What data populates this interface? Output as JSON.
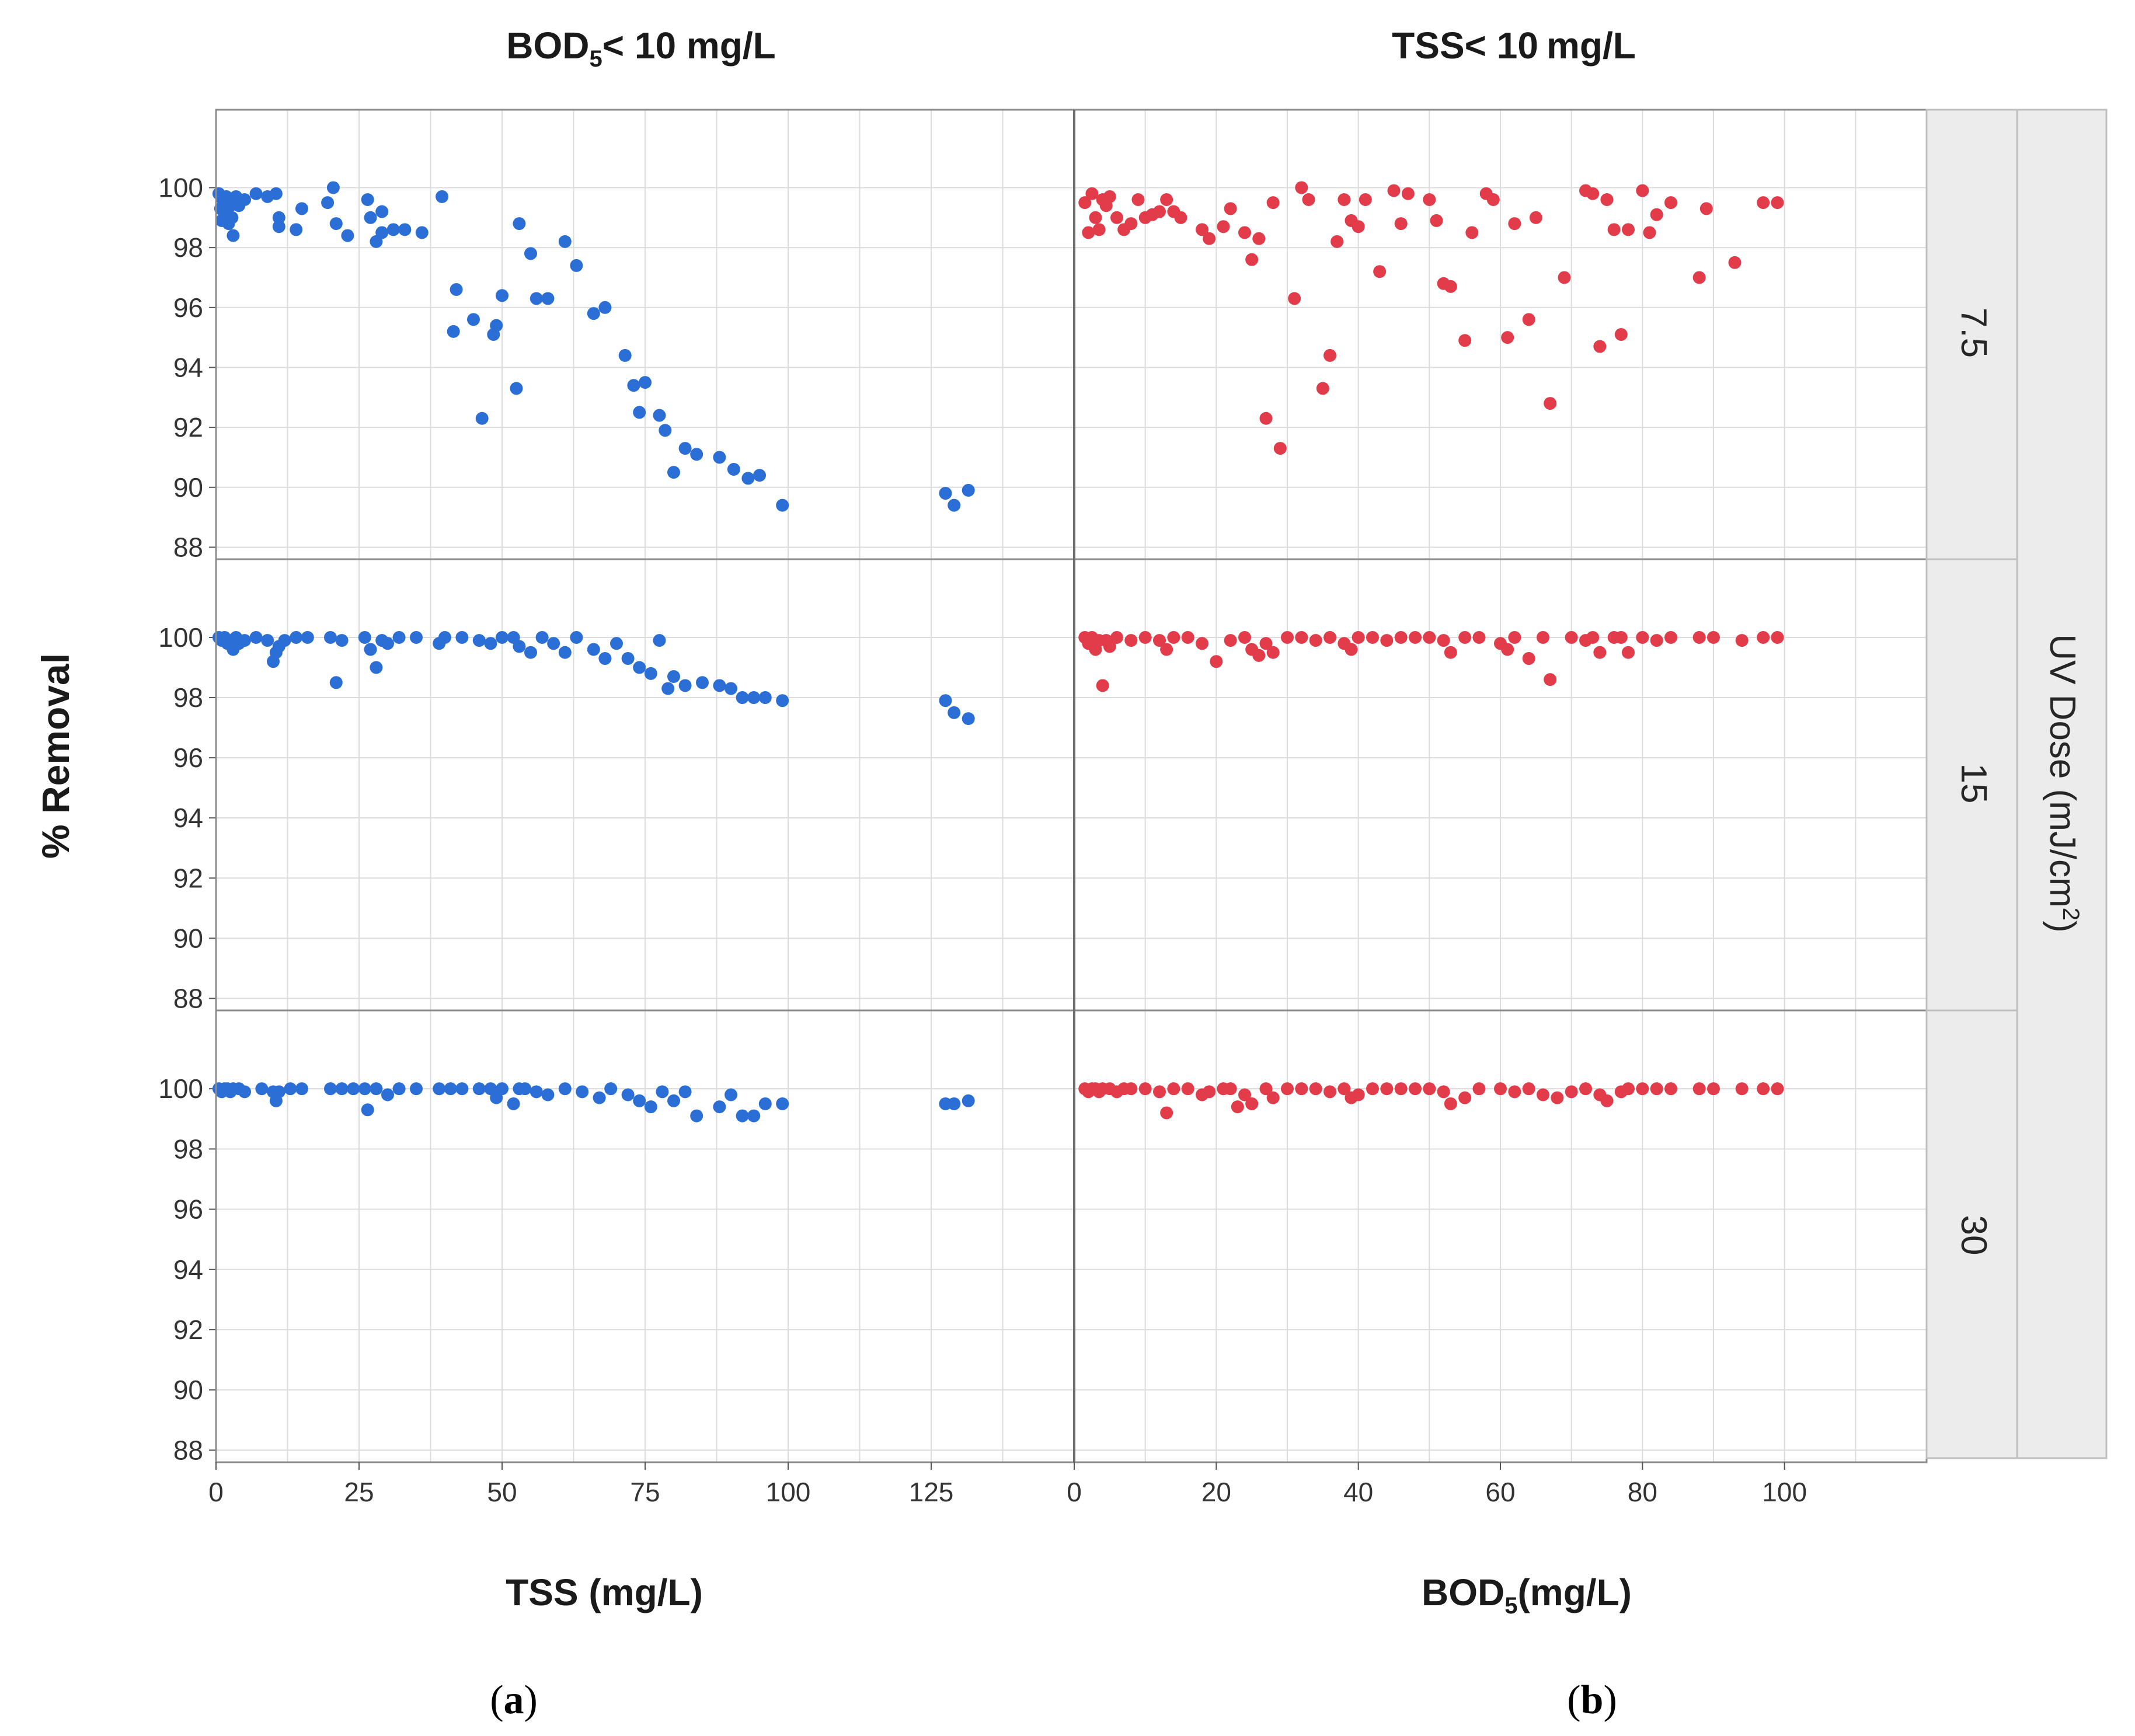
{
  "figure": {
    "panel_a": {
      "title_main": "BOD",
      "title_sub": "5",
      "title_rest": "< 10 mg/L",
      "xlabel": "TSS (mg/L)",
      "caption": "(a)"
    },
    "panel_b": {
      "title_main": "TSS< 10",
      "title_rest": "mg/L",
      "xlabel_main": "BOD",
      "xlabel_sub": "5",
      "xlabel_rest": "(mg/L)",
      "caption": "(b)"
    },
    "ylabel": "% Removal",
    "facet_label_main": "UV Dose (mJ/cm",
    "facet_label_sup": "2",
    "facet_label_rest": ")",
    "rows": [
      "7.5",
      "15",
      "30"
    ]
  },
  "chart_data": [
    {
      "type": "scatter",
      "panel": "a",
      "title": "BOD5< 10 mg/L",
      "xlabel": "TSS (mg/L)",
      "ylabel": "% Removal",
      "color": "#2b6fd6",
      "xlim": [
        0,
        150
      ],
      "ylim": [
        88,
        102
      ],
      "xticks": [
        0,
        25,
        50,
        75,
        100,
        125
      ],
      "yticks": [
        88,
        90,
        92,
        94,
        96,
        98,
        100
      ],
      "facets": [
        {
          "uv_dose": "7.5",
          "x": [
            0.5,
            0.8,
            1,
            1.2,
            1.5,
            1.8,
            2,
            2.2,
            2.5,
            2.8,
            3,
            3.2,
            3.5,
            4,
            5,
            7,
            9,
            10.5,
            11,
            11,
            14,
            15,
            19.5,
            20.5,
            21,
            23,
            26.5,
            27,
            29,
            28,
            29,
            31,
            33,
            36,
            39.5,
            41.5,
            42,
            45,
            46.5,
            48.5,
            49,
            50,
            52.5,
            53,
            55,
            56,
            58,
            61,
            63,
            66,
            68,
            71.5,
            73,
            74,
            75,
            77.5,
            78.5,
            80,
            82,
            84,
            88,
            90.5,
            93,
            95,
            99,
            127.5,
            129,
            131.5
          ],
          "y": [
            99.8,
            99.3,
            98.9,
            99.6,
            99.1,
            99.7,
            99.5,
            98.8,
            99.4,
            99.0,
            98.4,
            99.6,
            99.7,
            99.4,
            99.6,
            99.8,
            99.7,
            99.8,
            99.0,
            98.7,
            98.6,
            99.3,
            99.5,
            100,
            98.8,
            98.4,
            99.6,
            99.0,
            99.2,
            98.2,
            98.5,
            98.6,
            98.6,
            98.5,
            99.7,
            95.2,
            96.6,
            95.6,
            92.3,
            95.1,
            95.4,
            96.4,
            93.3,
            98.8,
            97.8,
            96.3,
            96.3,
            98.2,
            97.4,
            95.8,
            96.0,
            94.4,
            93.4,
            92.5,
            93.5,
            92.4,
            91.9,
            90.5,
            91.3,
            91.1,
            91.0,
            90.6,
            90.3,
            90.4,
            89.4,
            89.8,
            89.4,
            89.9
          ]
        },
        {
          "uv_dose": "15",
          "x": [
            0.5,
            1,
            1.5,
            2,
            2.5,
            3,
            3.5,
            4,
            5,
            7,
            9,
            10,
            10.5,
            11,
            12,
            14,
            16,
            20,
            21,
            22,
            26,
            27,
            28,
            29,
            30,
            32,
            35,
            39,
            40,
            43,
            46,
            48,
            50,
            52,
            53,
            55,
            57,
            59,
            61,
            63,
            66,
            68,
            70,
            72,
            74,
            76,
            77.5,
            79,
            80,
            82,
            85,
            88,
            90,
            92,
            94,
            96,
            99,
            127.5,
            129,
            131.5
          ],
          "y": [
            100,
            99.9,
            100,
            99.8,
            99.9,
            99.6,
            100,
            99.8,
            99.9,
            100,
            99.9,
            99.2,
            99.5,
            99.7,
            99.9,
            100,
            100,
            100,
            98.5,
            99.9,
            100,
            99.6,
            99.0,
            99.9,
            99.8,
            100,
            100,
            99.8,
            100,
            100,
            99.9,
            99.8,
            100,
            100,
            99.7,
            99.5,
            100,
            99.8,
            99.5,
            100,
            99.6,
            99.3,
            99.8,
            99.3,
            99.0,
            98.8,
            99.9,
            98.3,
            98.7,
            98.4,
            98.5,
            98.4,
            98.3,
            98.0,
            98.0,
            98.0,
            97.9,
            97.9,
            97.5,
            97.3
          ]
        },
        {
          "uv_dose": "30",
          "x": [
            0.5,
            1,
            1.5,
            2,
            2.5,
            3,
            4,
            5,
            8,
            10,
            10.5,
            11,
            13,
            15,
            20,
            22,
            24,
            26,
            26.5,
            28,
            30,
            32,
            35,
            39,
            41,
            43,
            46,
            48,
            49,
            50,
            52,
            53,
            54,
            56,
            58,
            61,
            64,
            67,
            69,
            72,
            74,
            76,
            78,
            80,
            82,
            84,
            88,
            90,
            92,
            94,
            96,
            99,
            127.5,
            129,
            131.5
          ],
          "y": [
            100,
            99.9,
            100,
            100,
            99.9,
            100,
            100,
            99.9,
            100,
            99.9,
            99.6,
            99.9,
            100,
            100,
            100,
            100,
            100,
            100,
            99.3,
            100,
            99.8,
            100,
            100,
            100,
            100,
            100,
            100,
            100,
            99.7,
            100,
            99.5,
            100,
            100,
            99.9,
            99.8,
            100,
            99.9,
            99.7,
            100,
            99.8,
            99.6,
            99.4,
            99.9,
            99.6,
            99.9,
            99.1,
            99.4,
            99.8,
            99.1,
            99.1,
            99.5,
            99.5,
            99.5,
            99.5,
            99.6
          ]
        }
      ]
    },
    {
      "type": "scatter",
      "panel": "b",
      "title": "TSS< 10 mg/L",
      "xlabel": "BOD5(mg/L)",
      "ylabel": "% Removal",
      "color": "#e23b4a",
      "xlim": [
        0,
        120
      ],
      "ylim": [
        88,
        102
      ],
      "xticks": [
        0,
        20,
        40,
        60,
        80,
        100
      ],
      "yticks": [
        88,
        90,
        92,
        94,
        96,
        98,
        100
      ],
      "facets": [
        {
          "uv_dose": "7.5",
          "x": [
            1.5,
            2,
            2.5,
            3,
            3.5,
            4,
            4.5,
            5,
            6,
            7,
            8,
            9,
            10,
            11,
            12,
            13,
            14,
            15,
            18,
            19,
            21,
            22,
            24,
            25,
            26,
            27,
            28,
            29,
            31,
            32,
            33,
            35,
            36,
            37,
            38,
            39,
            40,
            41,
            43,
            45,
            46,
            47,
            50,
            51,
            52,
            53,
            55,
            56,
            58,
            59,
            61,
            62,
            64,
            65,
            67,
            69,
            72,
            73,
            74,
            75,
            76,
            77,
            78,
            80,
            81,
            82,
            84,
            88,
            89,
            93,
            97,
            99
          ],
          "y": [
            99.5,
            98.5,
            99.8,
            99.0,
            98.6,
            99.6,
            99.4,
            99.7,
            99.0,
            98.6,
            98.8,
            99.6,
            99.0,
            99.1,
            99.2,
            99.6,
            99.2,
            99.0,
            98.6,
            98.3,
            98.7,
            99.3,
            98.5,
            97.6,
            98.3,
            92.3,
            99.5,
            91.3,
            96.3,
            100,
            99.6,
            93.3,
            94.4,
            98.2,
            99.6,
            98.9,
            98.7,
            99.6,
            97.2,
            99.9,
            98.8,
            99.8,
            99.6,
            98.9,
            96.8,
            96.7,
            94.9,
            98.5,
            99.8,
            99.6,
            95.0,
            98.8,
            95.6,
            99.0,
            92.8,
            97.0,
            99.9,
            99.8,
            94.7,
            99.6,
            98.6,
            95.1,
            98.6,
            99.9,
            98.5,
            99.1,
            99.5,
            97.0,
            99.3,
            97.5,
            99.5,
            99.5
          ]
        },
        {
          "uv_dose": "15",
          "x": [
            1.5,
            2,
            2.5,
            3,
            3.5,
            4,
            4.5,
            5,
            6,
            8,
            10,
            12,
            13,
            14,
            16,
            18,
            20,
            22,
            24,
            25,
            26,
            27,
            28,
            30,
            32,
            34,
            36,
            38,
            39,
            40,
            42,
            44,
            46,
            48,
            50,
            52,
            53,
            55,
            57,
            60,
            61,
            62,
            64,
            66,
            67,
            70,
            72,
            73,
            74,
            76,
            77,
            78,
            80,
            82,
            84,
            88,
            90,
            94,
            97,
            99
          ],
          "y": [
            100,
            99.8,
            100,
            99.6,
            99.9,
            98.4,
            99.9,
            99.7,
            100,
            99.9,
            100,
            99.9,
            99.6,
            100,
            100,
            99.8,
            99.2,
            99.9,
            100,
            99.6,
            99.4,
            99.8,
            99.5,
            100,
            100,
            99.9,
            100,
            99.8,
            99.6,
            100,
            100,
            99.9,
            100,
            100,
            100,
            99.9,
            99.5,
            100,
            100,
            99.8,
            99.6,
            100,
            99.3,
            100,
            98.6,
            100,
            99.9,
            100,
            99.5,
            100,
            100,
            99.5,
            100,
            99.9,
            100,
            100,
            100,
            99.9,
            100,
            100
          ]
        },
        {
          "uv_dose": "30",
          "x": [
            1.5,
            2,
            2.5,
            3,
            3.5,
            4,
            5,
            6,
            7,
            8,
            10,
            12,
            13,
            14,
            16,
            18,
            19,
            21,
            22,
            23,
            24,
            25,
            27,
            28,
            30,
            32,
            34,
            36,
            38,
            39,
            40,
            42,
            44,
            46,
            48,
            50,
            52,
            53,
            55,
            57,
            60,
            62,
            64,
            66,
            68,
            70,
            72,
            74,
            75,
            77,
            78,
            80,
            82,
            84,
            88,
            90,
            94,
            97,
            99
          ],
          "y": [
            100,
            99.9,
            100,
            100,
            99.9,
            100,
            100,
            99.9,
            100,
            100,
            100,
            99.9,
            99.2,
            100,
            100,
            99.8,
            99.9,
            100,
            100,
            99.4,
            99.8,
            99.5,
            100,
            99.7,
            100,
            100,
            100,
            99.9,
            100,
            99.7,
            99.8,
            100,
            100,
            100,
            100,
            100,
            99.9,
            99.5,
            99.7,
            100,
            100,
            99.9,
            100,
            99.8,
            99.7,
            99.9,
            100,
            99.8,
            99.6,
            99.9,
            100,
            100,
            100,
            100,
            100,
            100,
            100,
            100,
            100
          ]
        }
      ]
    }
  ]
}
